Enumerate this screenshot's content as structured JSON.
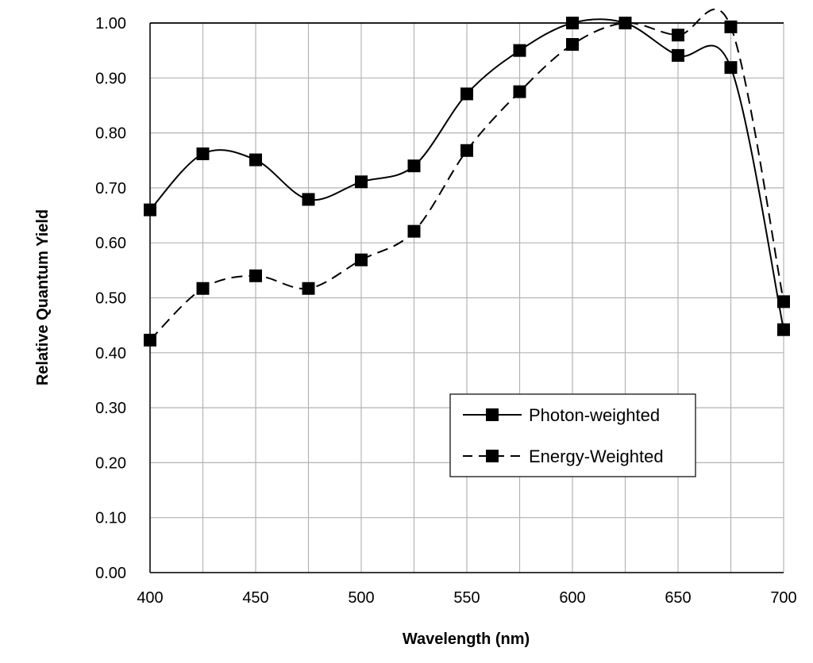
{
  "chart_data": {
    "type": "line",
    "xlabel": "Wavelength (nm)",
    "ylabel": "Relative Quantum Yield",
    "xlim": [
      400,
      700
    ],
    "ylim": [
      0,
      1
    ],
    "x_ticks": [
      "400",
      "450",
      "500",
      "550",
      "600",
      "650",
      "700"
    ],
    "y_ticks": [
      "0.00",
      "0.10",
      "0.20",
      "0.30",
      "0.40",
      "0.50",
      "0.60",
      "0.70",
      "0.80",
      "0.90",
      "1.00"
    ],
    "grid": true,
    "legend_position": "lower-right",
    "x": [
      400,
      425,
      450,
      475,
      500,
      525,
      550,
      575,
      600,
      625,
      650,
      675,
      700
    ],
    "series": [
      {
        "name": "Photon-weighted",
        "line_style": "solid",
        "marker": "square",
        "values": [
          0.66,
          0.762,
          0.751,
          0.679,
          0.711,
          0.74,
          0.871,
          0.95,
          1.0,
          1.0,
          0.941,
          0.919,
          0.442
        ]
      },
      {
        "name": "Energy-Weighted",
        "line_style": "dashed",
        "marker": "square",
        "values": [
          0.423,
          0.517,
          0.54,
          0.517,
          0.569,
          0.621,
          0.768,
          0.875,
          0.961,
          1.0,
          0.978,
          0.993,
          0.493
        ]
      }
    ]
  }
}
